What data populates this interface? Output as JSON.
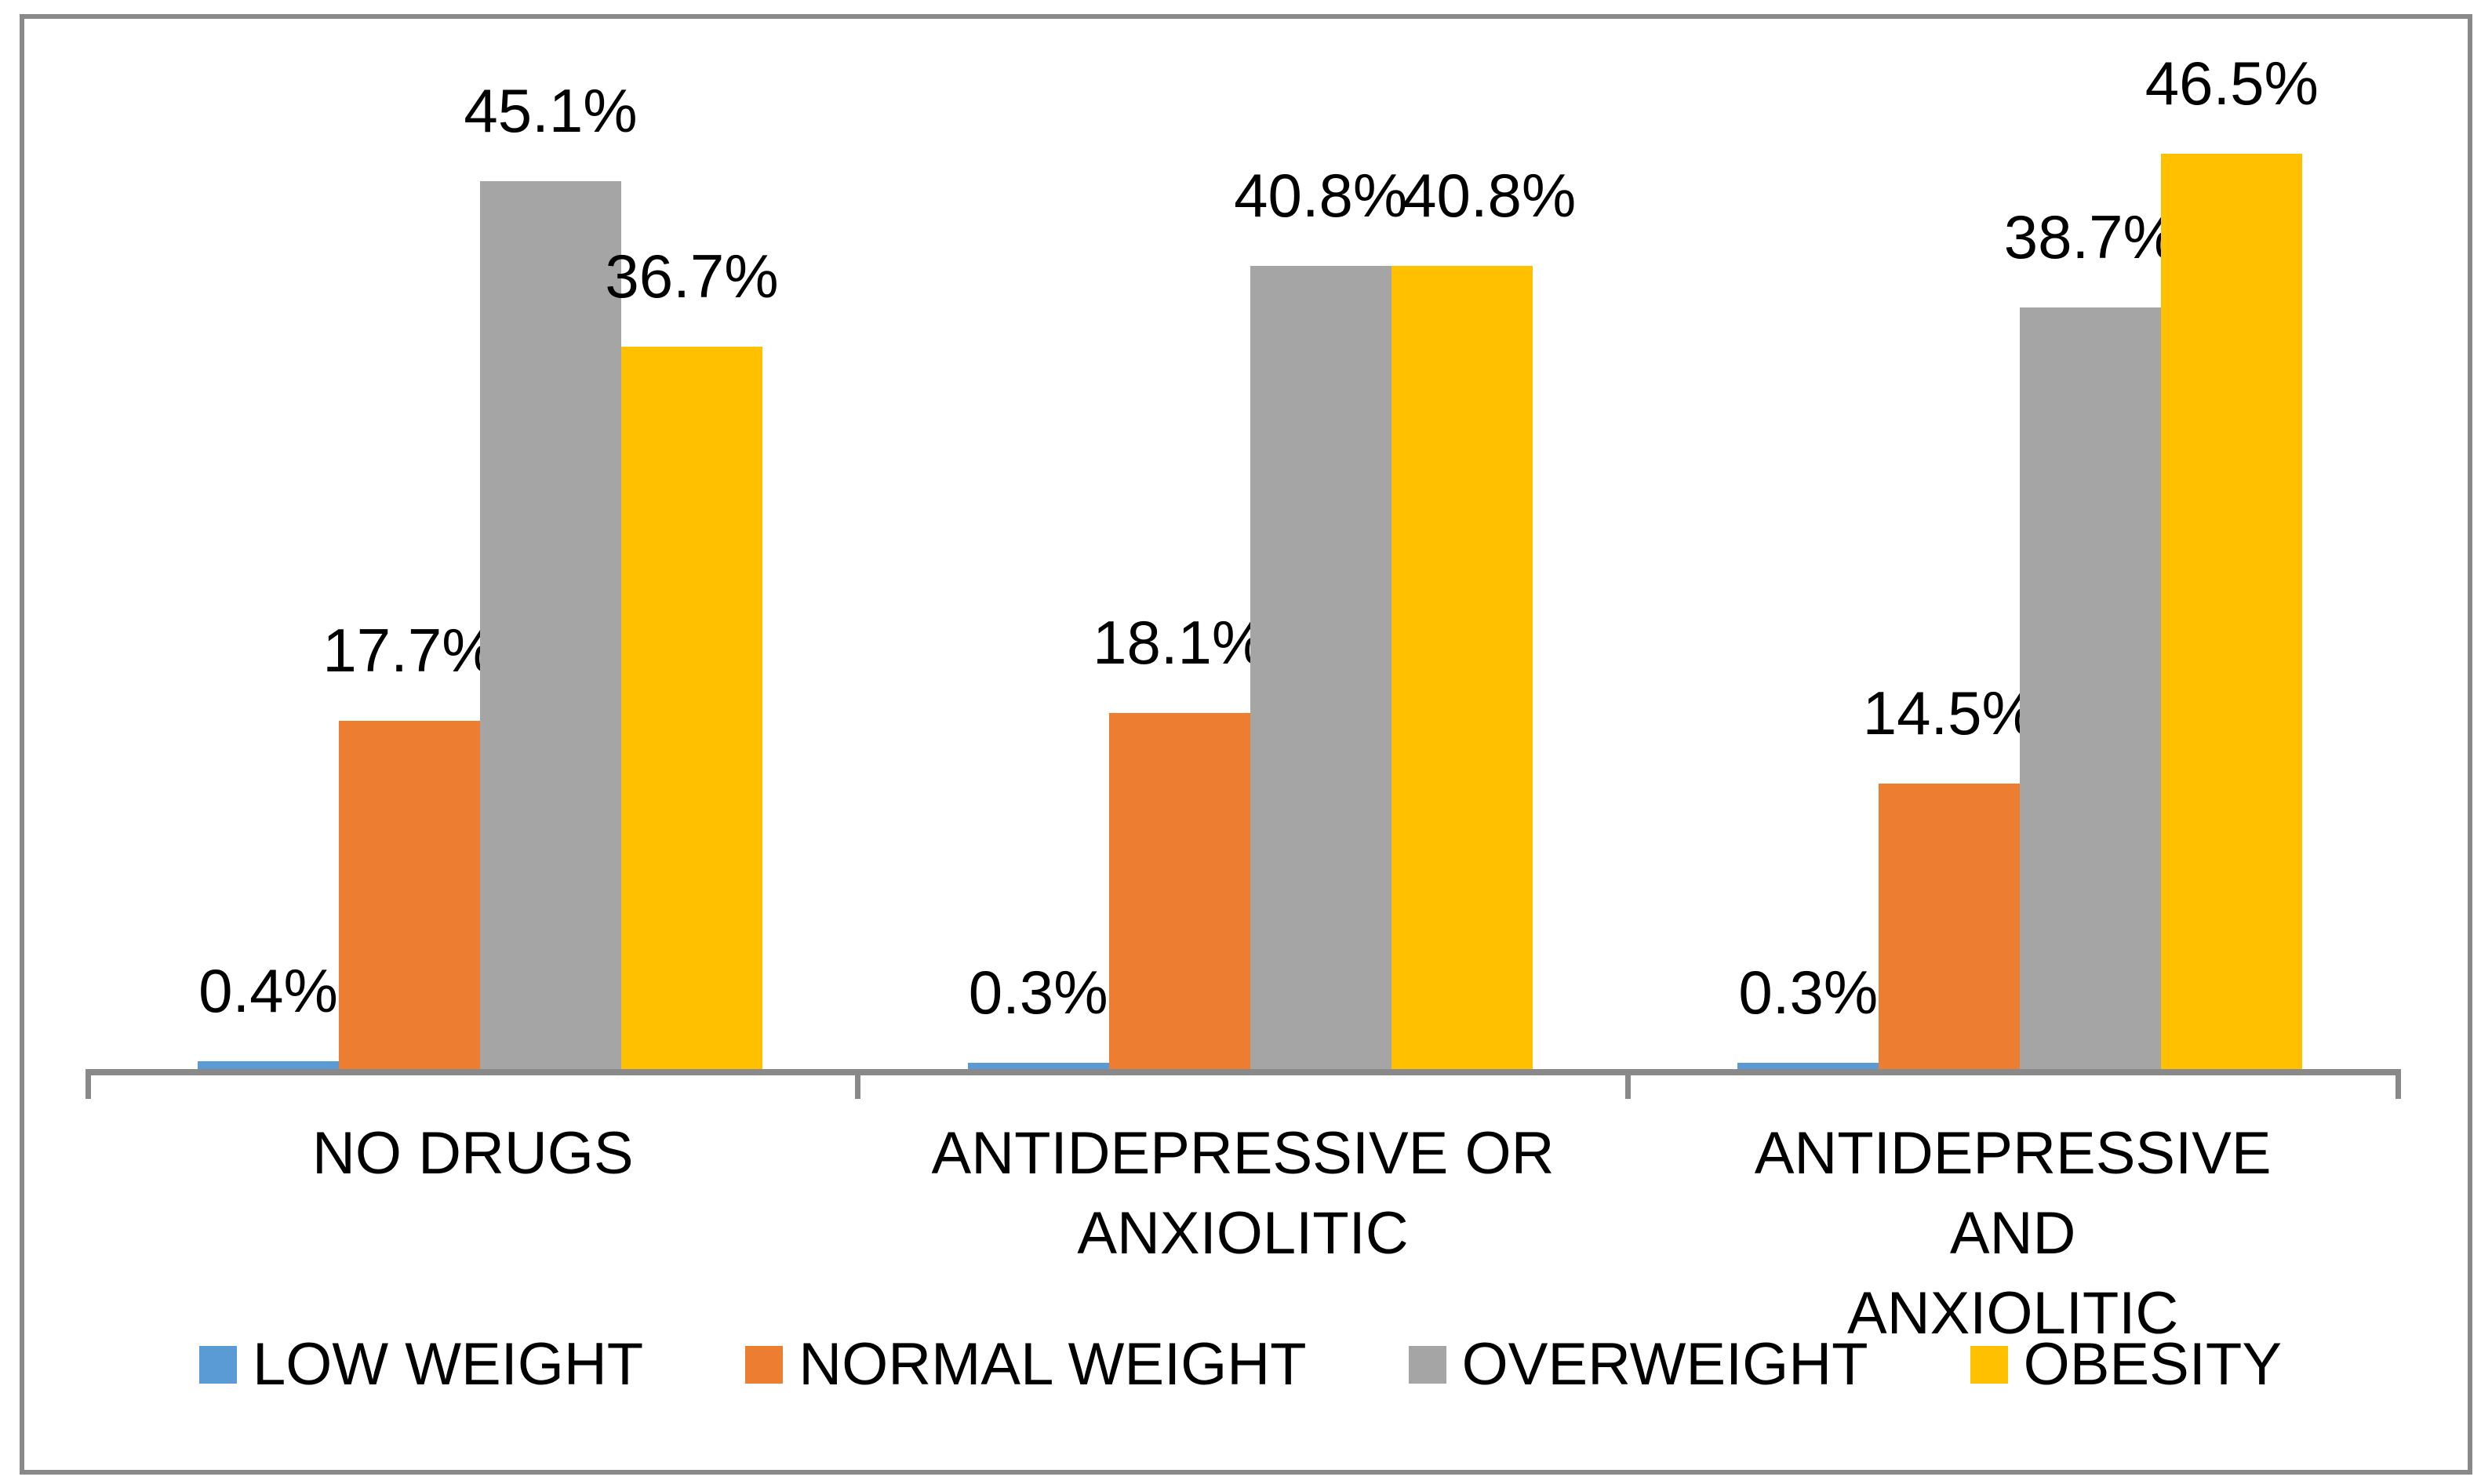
{
  "chart_data": {
    "type": "bar",
    "title": "",
    "categories": [
      "NO DRUGS",
      "ANTIDEPRESSIVE OR\nANXIOLITIC",
      "ANTIDEPRESSIVE AND\nANXIOLITIC"
    ],
    "series": [
      {
        "name": "LOW WEIGHT",
        "color": "#5B9BD5",
        "values": [
          0.4,
          0.3,
          0.3
        ],
        "labels": [
          "0.4%",
          "0.3%",
          "0.3%"
        ]
      },
      {
        "name": "NORMAL WEIGHT",
        "color": "#ED7D31",
        "values": [
          17.7,
          18.1,
          14.5
        ],
        "labels": [
          "17.7%",
          "18.1%",
          "14.5%"
        ]
      },
      {
        "name": "OVERWEIGHT",
        "color": "#A5A5A5",
        "values": [
          45.1,
          40.8,
          38.7
        ],
        "labels": [
          "45.1%",
          "40.8%",
          "38.7%"
        ]
      },
      {
        "name": "OBESITY",
        "color": "#FFC000",
        "values": [
          36.7,
          40.8,
          46.5
        ],
        "labels": [
          "36.7%",
          "40.8%",
          "46.5%"
        ]
      }
    ],
    "value_suffix": "%",
    "xlabel": "",
    "ylabel": "",
    "ylim": [
      0,
      50
    ],
    "grid": false,
    "y_axis_visible": false,
    "legend_position": "bottom",
    "colors": {
      "axis": "#898989",
      "border": "#898989",
      "label_text": "#000000"
    }
  }
}
